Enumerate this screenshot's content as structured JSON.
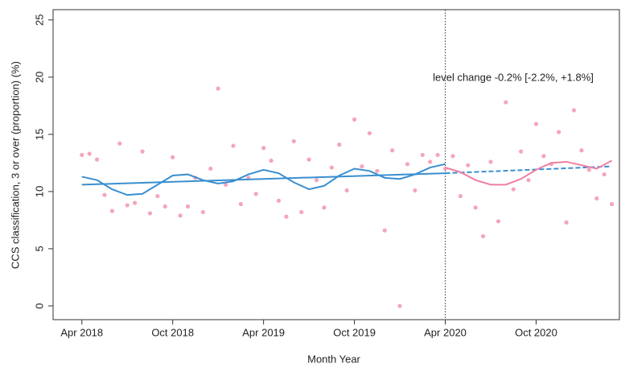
{
  "chart_data": {
    "type": "scatter",
    "x_label": "Month Year",
    "y_label": "CCS classification, 3 or over (proportion) (%)",
    "annotation": "level change -0.2% [-2.2%, +1.8%]",
    "xlim": [
      1.1,
      38.5
    ],
    "ylim": [
      -1.2,
      25.9
    ],
    "xticks": [
      {
        "value": 3,
        "label": "Apr 2018"
      },
      {
        "value": 9,
        "label": "Oct 2018"
      },
      {
        "value": 15,
        "label": "Apr 2019"
      },
      {
        "value": 21,
        "label": "Oct 2019"
      },
      {
        "value": 27,
        "label": "Apr 2020"
      },
      {
        "value": 33,
        "label": "Oct 2020"
      }
    ],
    "yticks": [
      0,
      5,
      10,
      15,
      20,
      25
    ],
    "vline": 27,
    "points": {
      "color": "#f4a6b8",
      "x": [
        3,
        3.5,
        4,
        4.5,
        5,
        5.5,
        6,
        6.5,
        7,
        7.5,
        8,
        8.5,
        9,
        9.5,
        10,
        10.5,
        11,
        11.5,
        12,
        12.5,
        13,
        13.5,
        14,
        14.5,
        15,
        15.5,
        16,
        16.5,
        17,
        17.5,
        18,
        18.5,
        19,
        19.5,
        20,
        20.5,
        21,
        21.5,
        22,
        22.5,
        23,
        23.5,
        24,
        24.5,
        25,
        25.5,
        26,
        26.5,
        27,
        27.5,
        28,
        28.5,
        29,
        29.5,
        30,
        30.5,
        31,
        31.5,
        32,
        32.5,
        33,
        33.5,
        34,
        34.5,
        35,
        35.5,
        36,
        36.5,
        37,
        37.5,
        38
      ],
      "values": [
        13.2,
        13.3,
        12.8,
        9.7,
        8.3,
        14.2,
        8.8,
        9.0,
        13.5,
        8.1,
        9.6,
        8.7,
        13.0,
        7.9,
        8.7,
        11.2,
        8.2,
        12.0,
        19.0,
        10.6,
        14.0,
        8.9,
        11.2,
        9.8,
        13.8,
        12.7,
        9.2,
        7.8,
        14.4,
        8.2,
        12.8,
        11.0,
        8.6,
        12.1,
        14.1,
        10.1,
        16.3,
        12.2,
        15.1,
        11.8,
        6.6,
        13.6,
        0,
        12.4,
        10.1,
        13.2,
        12.6,
        13.2,
        12.0,
        13.1,
        9.6,
        12.3,
        8.6,
        6.1,
        12.6,
        7.4,
        17.8,
        10.2,
        13.5,
        11.0,
        15.9,
        13.1,
        12.4,
        15.2,
        7.3,
        17.1,
        13.6,
        11.9,
        9.4,
        11.5,
        8.9
      ]
    },
    "lines": [
      {
        "color": "#3a8fd0",
        "dash": false,
        "x": [
          3,
          4,
          5,
          6,
          7,
          8,
          9,
          10,
          11,
          12,
          13,
          14,
          15,
          16,
          17,
          18,
          19,
          20,
          21,
          22,
          23,
          24,
          25,
          26,
          27
        ],
        "values": [
          11.3,
          11.0,
          10.2,
          9.7,
          9.8,
          10.6,
          11.4,
          11.5,
          11.0,
          10.7,
          10.9,
          11.5,
          11.9,
          11.6,
          10.8,
          10.2,
          10.5,
          11.4,
          12.0,
          11.8,
          11.2,
          11.1,
          11.5,
          12.1,
          12.4
        ]
      },
      {
        "color": "#3a8fd0",
        "dash": false,
        "x": [
          3,
          27
        ],
        "values": [
          10.6,
          11.6
        ]
      },
      {
        "color": "#3a8fd0",
        "dash": true,
        "x": [
          27,
          38
        ],
        "values": [
          11.6,
          12.2
        ]
      },
      {
        "color": "#ee7fa0",
        "dash": false,
        "x": [
          27,
          28,
          29,
          30,
          31,
          32,
          33,
          34,
          35,
          36,
          37,
          38
        ],
        "values": [
          12.1,
          11.7,
          11.0,
          10.6,
          10.6,
          11.1,
          11.9,
          12.5,
          12.6,
          12.3,
          12.0,
          12.7
        ]
      }
    ]
  }
}
